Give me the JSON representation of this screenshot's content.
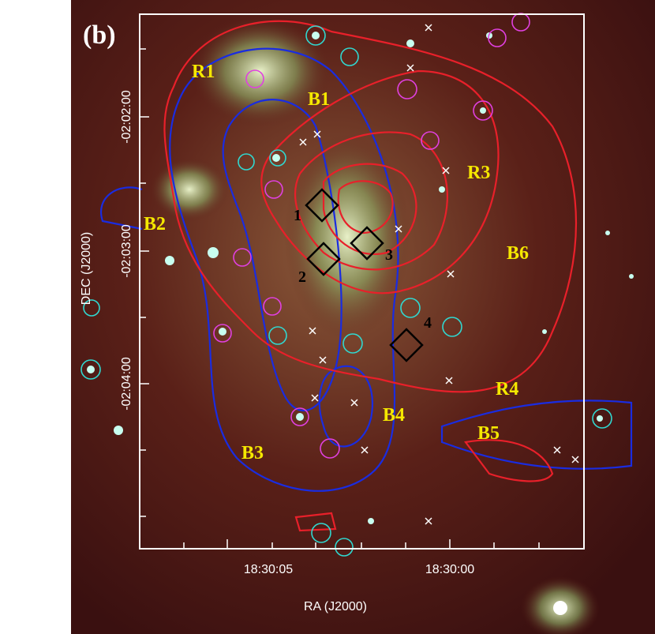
{
  "figure": {
    "panel_label": "(b)",
    "x_label": "RA (J2000)",
    "y_label": "DEC (J2000)",
    "x_tick_labels": [
      "18:30:05",
      "18:30:00"
    ],
    "y_tick_labels": [
      "-02:02:00",
      "-02:03:00",
      "-02:04:00"
    ],
    "regions": [
      "R1",
      "B1",
      "R3",
      "B2",
      "B6",
      "R4",
      "B4",
      "B5",
      "B3"
    ],
    "sources": [
      "1",
      "2",
      "3",
      "4"
    ]
  }
}
